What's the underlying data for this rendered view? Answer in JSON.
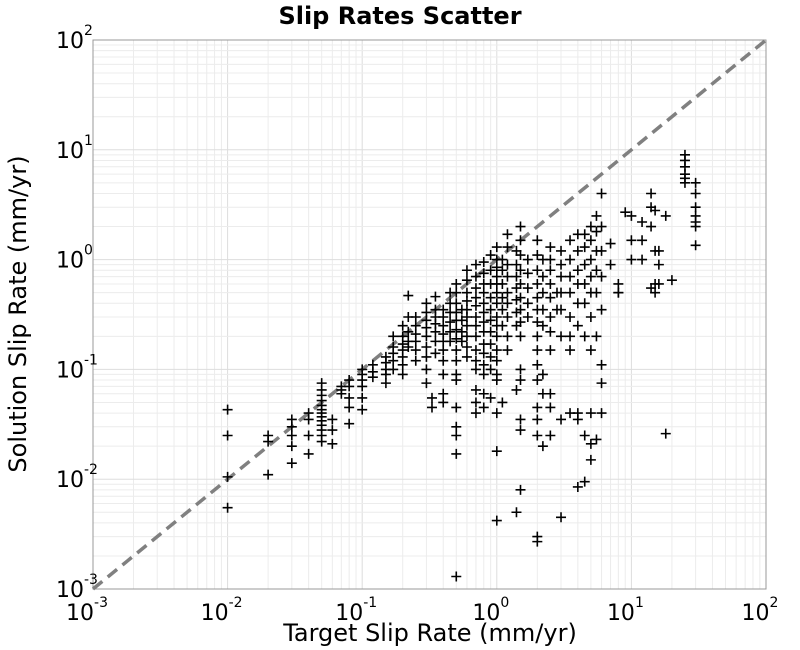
{
  "chart_data": {
    "type": "scatter",
    "title": "Slip Rates Scatter",
    "xlabel": "Target Slip Rate (mm/yr)",
    "ylabel": "Solution Slip Rate (mm/yr)",
    "x_scale": "log",
    "y_scale": "log",
    "xlim": [
      0.001,
      100
    ],
    "ylim": [
      0.001,
      100
    ],
    "grid": true,
    "marker": "plus",
    "marker_color": "#000000",
    "reference_line": {
      "style": "dashed",
      "color": "#808080",
      "from": [
        0.001,
        0.001
      ],
      "to": [
        100,
        100
      ]
    },
    "x_ticks": [
      {
        "base": "10",
        "exp": "-3"
      },
      {
        "base": "10",
        "exp": "-2"
      },
      {
        "base": "10",
        "exp": "-1"
      },
      {
        "base": "10",
        "exp": "0"
      },
      {
        "base": "10",
        "exp": "1"
      },
      {
        "base": "10",
        "exp": "2"
      }
    ],
    "y_ticks": [
      {
        "base": "10",
        "exp": "-3"
      },
      {
        "base": "10",
        "exp": "-2"
      },
      {
        "base": "10",
        "exp": "-1"
      },
      {
        "base": "10",
        "exp": "0"
      },
      {
        "base": "10",
        "exp": "1"
      },
      {
        "base": "10",
        "exp": "2"
      }
    ],
    "points": [
      [
        0.01,
        0.043
      ],
      [
        0.01,
        0.025
      ],
      [
        0.01,
        0.0105
      ],
      [
        0.01,
        0.0055
      ],
      [
        0.02,
        0.025
      ],
      [
        0.02,
        0.022
      ],
      [
        0.02,
        0.011
      ],
      [
        0.03,
        0.035
      ],
      [
        0.03,
        0.03
      ],
      [
        0.03,
        0.025
      ],
      [
        0.03,
        0.02
      ],
      [
        0.03,
        0.014
      ],
      [
        0.04,
        0.04
      ],
      [
        0.04,
        0.035
      ],
      [
        0.04,
        0.025
      ],
      [
        0.04,
        0.017
      ],
      [
        0.05,
        0.075
      ],
      [
        0.05,
        0.065
      ],
      [
        0.05,
        0.058
      ],
      [
        0.05,
        0.052
      ],
      [
        0.05,
        0.047
      ],
      [
        0.05,
        0.043
      ],
      [
        0.05,
        0.04
      ],
      [
        0.05,
        0.037
      ],
      [
        0.05,
        0.034
      ],
      [
        0.05,
        0.031
      ],
      [
        0.05,
        0.028
      ],
      [
        0.05,
        0.025
      ],
      [
        0.05,
        0.022
      ],
      [
        0.06,
        0.035
      ],
      [
        0.06,
        0.028
      ],
      [
        0.06,
        0.021
      ],
      [
        0.07,
        0.07
      ],
      [
        0.07,
        0.065
      ],
      [
        0.07,
        0.06
      ],
      [
        0.08,
        0.08
      ],
      [
        0.08,
        0.07
      ],
      [
        0.08,
        0.055
      ],
      [
        0.08,
        0.045
      ],
      [
        0.08,
        0.032
      ],
      [
        0.1,
        0.1
      ],
      [
        0.1,
        0.08
      ],
      [
        0.1,
        0.09
      ],
      [
        0.1,
        0.07
      ],
      [
        0.1,
        0.055
      ],
      [
        0.1,
        0.043
      ],
      [
        0.12,
        0.11
      ],
      [
        0.12,
        0.095
      ],
      [
        0.12,
        0.085
      ],
      [
        0.15,
        0.13
      ],
      [
        0.15,
        0.115
      ],
      [
        0.15,
        0.1
      ],
      [
        0.15,
        0.09
      ],
      [
        0.15,
        0.075
      ],
      [
        0.17,
        0.2
      ],
      [
        0.17,
        0.16
      ],
      [
        0.17,
        0.14
      ],
      [
        0.17,
        0.12
      ],
      [
        0.17,
        0.1
      ],
      [
        0.2,
        0.25
      ],
      [
        0.2,
        0.2
      ],
      [
        0.2,
        0.17
      ],
      [
        0.2,
        0.15
      ],
      [
        0.2,
        0.13
      ],
      [
        0.2,
        0.11
      ],
      [
        0.2,
        0.09
      ],
      [
        0.22,
        0.47
      ],
      [
        0.22,
        0.3
      ],
      [
        0.22,
        0.22
      ],
      [
        0.22,
        0.18
      ],
      [
        0.22,
        0.16
      ],
      [
        0.25,
        0.3
      ],
      [
        0.25,
        0.25
      ],
      [
        0.25,
        0.21
      ],
      [
        0.25,
        0.18
      ],
      [
        0.25,
        0.15
      ],
      [
        0.25,
        0.12
      ],
      [
        0.3,
        0.4
      ],
      [
        0.3,
        0.33
      ],
      [
        0.3,
        0.28
      ],
      [
        0.3,
        0.24
      ],
      [
        0.3,
        0.2
      ],
      [
        0.3,
        0.16
      ],
      [
        0.3,
        0.13
      ],
      [
        0.3,
        0.1
      ],
      [
        0.3,
        0.075
      ],
      [
        0.33,
        0.045
      ],
      [
        0.33,
        0.055
      ],
      [
        0.35,
        0.46
      ],
      [
        0.35,
        0.35
      ],
      [
        0.35,
        0.3
      ],
      [
        0.35,
        0.26
      ],
      [
        0.35,
        0.22
      ],
      [
        0.35,
        0.18
      ],
      [
        0.35,
        0.14
      ],
      [
        0.4,
        0.35
      ],
      [
        0.4,
        0.3
      ],
      [
        0.4,
        0.25
      ],
      [
        0.4,
        0.21
      ],
      [
        0.4,
        0.18
      ],
      [
        0.4,
        0.15
      ],
      [
        0.4,
        0.12
      ],
      [
        0.4,
        0.09
      ],
      [
        0.4,
        0.06
      ],
      [
        0.4,
        0.05
      ],
      [
        0.45,
        0.5
      ],
      [
        0.45,
        0.4
      ],
      [
        0.45,
        0.33
      ],
      [
        0.45,
        0.27
      ],
      [
        0.45,
        0.22
      ],
      [
        0.45,
        0.18
      ],
      [
        0.5,
        0.6
      ],
      [
        0.5,
        0.5
      ],
      [
        0.5,
        0.4
      ],
      [
        0.5,
        0.33
      ],
      [
        0.5,
        0.28
      ],
      [
        0.5,
        0.23
      ],
      [
        0.5,
        0.19
      ],
      [
        0.5,
        0.15
      ],
      [
        0.5,
        0.12
      ],
      [
        0.5,
        0.09
      ],
      [
        0.5,
        0.08
      ],
      [
        0.5,
        0.045
      ],
      [
        0.5,
        0.03
      ],
      [
        0.5,
        0.025
      ],
      [
        0.5,
        0.017
      ],
      [
        0.5,
        0.0013
      ],
      [
        0.55,
        0.35
      ],
      [
        0.55,
        0.28
      ],
      [
        0.55,
        0.22
      ],
      [
        0.55,
        0.18
      ],
      [
        0.6,
        0.8
      ],
      [
        0.6,
        0.65
      ],
      [
        0.6,
        0.5
      ],
      [
        0.6,
        0.42
      ],
      [
        0.6,
        0.35
      ],
      [
        0.6,
        0.3
      ],
      [
        0.6,
        0.25
      ],
      [
        0.6,
        0.2
      ],
      [
        0.6,
        0.16
      ],
      [
        0.6,
        0.13
      ],
      [
        0.7,
        0.9
      ],
      [
        0.7,
        0.7
      ],
      [
        0.7,
        0.55
      ],
      [
        0.7,
        0.45
      ],
      [
        0.7,
        0.38
      ],
      [
        0.7,
        0.3
      ],
      [
        0.7,
        0.25
      ],
      [
        0.7,
        0.2
      ],
      [
        0.7,
        0.15
      ],
      [
        0.7,
        0.12
      ],
      [
        0.7,
        0.1
      ],
      [
        0.7,
        0.065
      ],
      [
        0.7,
        0.05
      ],
      [
        0.7,
        0.04
      ],
      [
        0.8,
        0.95
      ],
      [
        0.8,
        0.75
      ],
      [
        0.8,
        0.6
      ],
      [
        0.8,
        0.5
      ],
      [
        0.8,
        0.4
      ],
      [
        0.8,
        0.33
      ],
      [
        0.8,
        0.27
      ],
      [
        0.8,
        0.22
      ],
      [
        0.8,
        0.17
      ],
      [
        0.8,
        0.14
      ],
      [
        0.8,
        0.11
      ],
      [
        0.8,
        0.09
      ],
      [
        0.8,
        0.06
      ],
      [
        0.8,
        0.045
      ],
      [
        0.9,
        1.1
      ],
      [
        0.9,
        0.8
      ],
      [
        0.9,
        0.6
      ],
      [
        0.9,
        0.45
      ],
      [
        0.9,
        0.35
      ],
      [
        0.9,
        0.28
      ],
      [
        0.9,
        0.22
      ],
      [
        0.9,
        0.17
      ],
      [
        0.9,
        0.13
      ],
      [
        0.9,
        0.1
      ],
      [
        0.9,
        0.055
      ],
      [
        1.0,
        1.3
      ],
      [
        1.0,
        1.0
      ],
      [
        1.0,
        0.85
      ],
      [
        1.0,
        0.7
      ],
      [
        1.0,
        0.6
      ],
      [
        1.0,
        0.5
      ],
      [
        1.0,
        0.4
      ],
      [
        1.0,
        0.3
      ],
      [
        1.0,
        0.25
      ],
      [
        1.0,
        0.2
      ],
      [
        1.0,
        0.15
      ],
      [
        1.0,
        0.12
      ],
      [
        1.0,
        0.09
      ],
      [
        1.0,
        0.08
      ],
      [
        1.0,
        0.04
      ],
      [
        1.0,
        0.018
      ],
      [
        1.0,
        0.0042
      ],
      [
        1.1,
        1.0
      ],
      [
        1.1,
        0.8
      ],
      [
        1.1,
        0.6
      ],
      [
        1.1,
        0.45
      ],
      [
        1.1,
        0.35
      ],
      [
        1.1,
        0.25
      ],
      [
        1.1,
        0.05
      ],
      [
        1.2,
        1.7
      ],
      [
        1.2,
        1.3
      ],
      [
        1.2,
        0.9
      ],
      [
        1.2,
        0.7
      ],
      [
        1.2,
        0.5
      ],
      [
        1.2,
        0.4
      ],
      [
        1.2,
        0.3
      ],
      [
        1.2,
        0.2
      ],
      [
        1.2,
        0.15
      ],
      [
        1.4,
        1.2
      ],
      [
        1.4,
        0.9
      ],
      [
        1.4,
        0.7
      ],
      [
        1.4,
        0.55
      ],
      [
        1.4,
        0.43
      ],
      [
        1.4,
        0.33
      ],
      [
        1.4,
        0.25
      ],
      [
        1.4,
        0.065
      ],
      [
        1.4,
        0.005
      ],
      [
        1.5,
        2.0
      ],
      [
        1.5,
        1.5
      ],
      [
        1.5,
        1.1
      ],
      [
        1.5,
        0.8
      ],
      [
        1.5,
        0.6
      ],
      [
        1.5,
        0.45
      ],
      [
        1.5,
        0.35
      ],
      [
        1.5,
        0.27
      ],
      [
        1.5,
        0.2
      ],
      [
        1.5,
        0.1
      ],
      [
        1.5,
        0.08
      ],
      [
        1.5,
        0.035
      ],
      [
        1.5,
        0.028
      ],
      [
        1.5,
        0.008
      ],
      [
        1.7,
        1.0
      ],
      [
        1.7,
        0.75
      ],
      [
        1.7,
        0.55
      ],
      [
        1.7,
        0.4
      ],
      [
        1.7,
        0.3
      ],
      [
        2.0,
        1.5
      ],
      [
        2.0,
        1.1
      ],
      [
        2.0,
        0.8
      ],
      [
        2.0,
        0.6
      ],
      [
        2.0,
        0.45
      ],
      [
        2.0,
        0.35
      ],
      [
        2.0,
        0.27
      ],
      [
        2.0,
        0.2
      ],
      [
        2.0,
        0.15
      ],
      [
        2.0,
        0.11
      ],
      [
        2.0,
        0.08
      ],
      [
        2.0,
        0.045
      ],
      [
        2.0,
        0.035
      ],
      [
        2.0,
        0.025
      ],
      [
        2.0,
        0.003
      ],
      [
        2.0,
        0.0027
      ],
      [
        2.2,
        1.0
      ],
      [
        2.2,
        0.7
      ],
      [
        2.2,
        0.5
      ],
      [
        2.2,
        0.35
      ],
      [
        2.2,
        0.25
      ],
      [
        2.2,
        0.09
      ],
      [
        2.2,
        0.06
      ],
      [
        2.2,
        0.02
      ],
      [
        2.5,
        1.3
      ],
      [
        2.5,
        1.0
      ],
      [
        2.5,
        0.8
      ],
      [
        2.5,
        0.6
      ],
      [
        2.5,
        0.45
      ],
      [
        2.5,
        0.3
      ],
      [
        2.5,
        0.22
      ],
      [
        2.5,
        0.15
      ],
      [
        2.5,
        0.06
      ],
      [
        2.5,
        0.045
      ],
      [
        2.5,
        0.025
      ],
      [
        2.8,
        0.5
      ],
      [
        2.8,
        0.35
      ],
      [
        3.0,
        1.2
      ],
      [
        3.0,
        0.9
      ],
      [
        3.0,
        0.7
      ],
      [
        3.0,
        0.5
      ],
      [
        3.0,
        0.35
      ],
      [
        3.0,
        0.2
      ],
      [
        3.0,
        0.035
      ],
      [
        3.0,
        0.0045
      ],
      [
        3.5,
        1.5
      ],
      [
        3.5,
        1.0
      ],
      [
        3.5,
        0.7
      ],
      [
        3.5,
        0.5
      ],
      [
        3.5,
        0.3
      ],
      [
        3.5,
        0.2
      ],
      [
        3.5,
        0.15
      ],
      [
        3.5,
        0.04
      ],
      [
        4.0,
        1.7
      ],
      [
        4.0,
        1.2
      ],
      [
        4.0,
        0.8
      ],
      [
        4.0,
        0.6
      ],
      [
        4.0,
        0.4
      ],
      [
        4.0,
        0.25
      ],
      [
        4.0,
        0.04
      ],
      [
        4.0,
        0.035
      ],
      [
        4.0,
        0.0085
      ],
      [
        4.5,
        1.7
      ],
      [
        4.5,
        1.3
      ],
      [
        4.5,
        0.9
      ],
      [
        4.5,
        0.6
      ],
      [
        4.5,
        0.4
      ],
      [
        4.5,
        0.2
      ],
      [
        4.5,
        0.025
      ],
      [
        4.5,
        0.0095
      ],
      [
        5.0,
        2.0
      ],
      [
        5.0,
        1.5
      ],
      [
        5.0,
        1.0
      ],
      [
        5.0,
        0.7
      ],
      [
        5.0,
        0.5
      ],
      [
        5.0,
        0.3
      ],
      [
        5.0,
        0.15
      ],
      [
        5.0,
        0.04
      ],
      [
        5.0,
        0.021
      ],
      [
        5.0,
        0.015
      ],
      [
        5.5,
        2.5
      ],
      [
        5.5,
        1.8
      ],
      [
        5.5,
        1.2
      ],
      [
        5.5,
        0.8
      ],
      [
        5.5,
        0.5
      ],
      [
        5.5,
        0.2
      ],
      [
        5.5,
        0.023
      ],
      [
        6.0,
        4.0
      ],
      [
        6.0,
        2.0
      ],
      [
        6.0,
        1.2
      ],
      [
        6.0,
        0.7
      ],
      [
        6.0,
        0.35
      ],
      [
        6.0,
        0.04
      ],
      [
        6.0,
        0.11
      ],
      [
        6.0,
        0.075
      ],
      [
        7.0,
        1.4
      ],
      [
        7.0,
        0.9
      ],
      [
        8.0,
        0.5
      ],
      [
        8.0,
        0.5
      ],
      [
        8.0,
        0.6
      ],
      [
        9.0,
        2.7
      ],
      [
        10.0,
        2.5
      ],
      [
        10.0,
        1.5
      ],
      [
        10.0,
        1.0
      ],
      [
        12.0,
        2.2
      ],
      [
        12.0,
        1.5
      ],
      [
        12.0,
        1.0
      ],
      [
        14.0,
        4.0
      ],
      [
        14.0,
        3.0
      ],
      [
        14.0,
        2.0
      ],
      [
        14.0,
        0.55
      ],
      [
        15.0,
        2.8
      ],
      [
        15.0,
        1.2
      ],
      [
        15.0,
        0.5
      ],
      [
        15.0,
        0.6
      ],
      [
        16.0,
        1.2
      ],
      [
        16.0,
        0.9
      ],
      [
        16.0,
        0.6
      ],
      [
        18.0,
        2.5
      ],
      [
        18.0,
        0.026
      ],
      [
        20.0,
        0.65
      ],
      [
        25.0,
        9.0
      ],
      [
        25.0,
        8.0
      ],
      [
        25.0,
        7.0
      ],
      [
        25.0,
        6.0
      ],
      [
        25.0,
        5.5
      ],
      [
        25.0,
        5.0
      ],
      [
        30.0,
        5.0
      ],
      [
        30.0,
        4.0
      ],
      [
        30.0,
        3.0
      ],
      [
        30.0,
        2.5
      ],
      [
        30.0,
        2.2
      ],
      [
        30.0,
        2.0
      ],
      [
        30.0,
        1.35
      ]
    ]
  }
}
